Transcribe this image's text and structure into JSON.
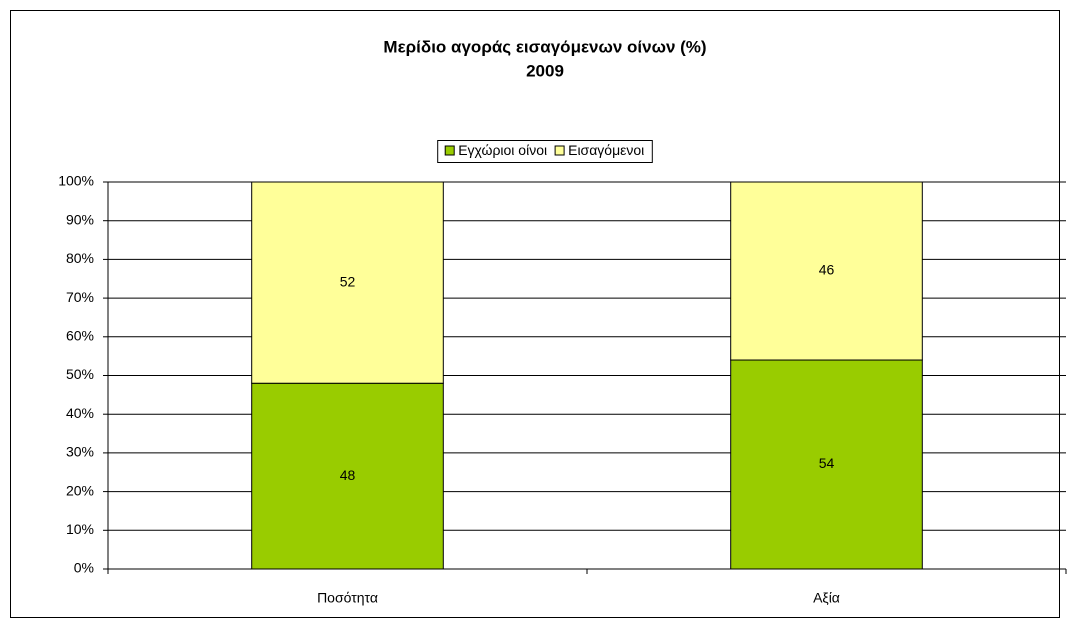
{
  "chart_data": {
    "type": "stacked_bar",
    "title": "Μερίδιο αγοράς εισαγόμενων οίνων (%)",
    "subtitle": "2009",
    "categories": [
      "Ποσότητα",
      "Αξία"
    ],
    "series": [
      {
        "name": "Εγχώριοι οίνοι",
        "color": "#99cc00",
        "values": [
          48,
          54
        ]
      },
      {
        "name": "Εισαγόμενοι",
        "color": "#ffff99",
        "values": [
          52,
          46
        ]
      }
    ],
    "ylim": [
      0,
      100
    ],
    "yticks": [
      {
        "value": 0,
        "label": "0%"
      },
      {
        "value": 10,
        "label": "10%"
      },
      {
        "value": 20,
        "label": "20%"
      },
      {
        "value": 30,
        "label": "30%"
      },
      {
        "value": 40,
        "label": "40%"
      },
      {
        "value": 50,
        "label": "50%"
      },
      {
        "value": 60,
        "label": "60%"
      },
      {
        "value": 70,
        "label": "70%"
      },
      {
        "value": 80,
        "label": "80%"
      },
      {
        "value": 90,
        "label": "90%"
      },
      {
        "value": 100,
        "label": "100%"
      }
    ],
    "grid": true,
    "legend": "top"
  }
}
